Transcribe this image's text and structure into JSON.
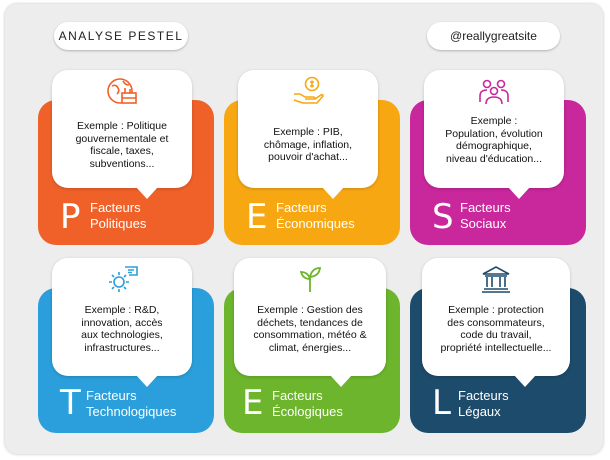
{
  "header": {
    "title": "ANALYSE PESTEL",
    "handle": "@reallygreatsite"
  },
  "cards": [
    {
      "letter": "P",
      "label1": "Facteurs",
      "label2": "Politiques",
      "color": "#f0612a",
      "icon": "globe-factory-icon",
      "icon_color": "#f0612a",
      "lines": [
        "Exemple : Politique",
        "gouvernementale et",
        "fiscale,  taxes,",
        "subventions..."
      ]
    },
    {
      "letter": "E",
      "label1": "Facteurs",
      "label2": "Économiques",
      "color": "#f7a712",
      "icon": "hand-coin-icon",
      "icon_color": "#f7a712",
      "lines": [
        "Exemple : PIB,",
        "chômage, inflation,",
        "pouvoir d'achat..."
      ]
    },
    {
      "letter": "S",
      "label1": "Facteurs",
      "label2": "Sociaux",
      "color": "#c9279c",
      "icon": "people-group-icon",
      "icon_color": "#c9279c",
      "lines": [
        "Exemple :",
        "Population, évolution",
        "démographique,",
        "niveau d'éducation..."
      ]
    },
    {
      "letter": "T",
      "label1": "Facteurs",
      "label2": "Technologiques",
      "color": "#2a9fdc",
      "icon": "gear-tech-icon",
      "icon_color": "#2a9fdc",
      "lines": [
        "Exemple : R&D,",
        "innovation, accès",
        "aux technologies,",
        "infrastructures..."
      ]
    },
    {
      "letter": "E",
      "label1": "Facteurs",
      "label2": "Écologiques",
      "color": "#6cb52d",
      "icon": "sprout-icon",
      "icon_color": "#6cb52d",
      "lines": [
        "Exemple : Gestion des",
        "déchets, tendances de",
        "consommation, météo &",
        "climat, énergies..."
      ]
    },
    {
      "letter": "L",
      "label1": "Facteurs",
      "label2": "Légaux",
      "color": "#1d4b6b",
      "icon": "courthouse-icon",
      "icon_color": "#1d4b6b",
      "lines": [
        "Exemple : protection",
        "des consommateurs,",
        "code du travail,",
        "propriété intellectuelle..."
      ]
    }
  ]
}
